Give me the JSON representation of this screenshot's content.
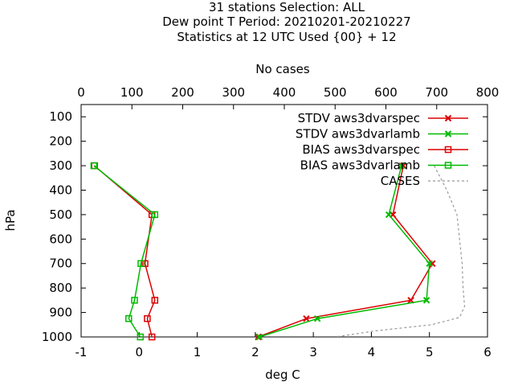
{
  "chart_data": {
    "type": "line",
    "title": [
      "31 stations Selection: ALL",
      "Dew point T  Period: 20210201-20210227",
      "Statistics at 12 UTC  Used {00} + 12"
    ],
    "xlabel": "deg C",
    "x2label": "No cases",
    "ylabel": "hPa",
    "xlim": [
      -1,
      6
    ],
    "x2lim": [
      0,
      800
    ],
    "ylim": [
      1000,
      50
    ],
    "x_ticks": [
      -1,
      0,
      1,
      2,
      3,
      4,
      5,
      6
    ],
    "x2_ticks": [
      0,
      100,
      200,
      300,
      400,
      500,
      600,
      700,
      800
    ],
    "y_ticks": [
      100,
      200,
      300,
      400,
      500,
      600,
      700,
      800,
      900,
      1000
    ],
    "grid": false,
    "legend_position": "top-right",
    "series": [
      {
        "name": "STDV aws3dvarspec",
        "color": "#dd0000",
        "marker": "x",
        "axis": "x",
        "points": [
          [
            4.55,
            300
          ],
          [
            4.37,
            500
          ],
          [
            5.05,
            700
          ],
          [
            4.68,
            850
          ],
          [
            2.88,
            925
          ],
          [
            2.05,
            1000
          ]
        ]
      },
      {
        "name": "STDV aws3dvarlamb",
        "color": "#00bb00",
        "marker": "x",
        "axis": "x",
        "points": [
          [
            4.52,
            300
          ],
          [
            4.3,
            500
          ],
          [
            5.0,
            700
          ],
          [
            4.95,
            850
          ],
          [
            3.07,
            925
          ],
          [
            2.07,
            1000
          ]
        ]
      },
      {
        "name": "BIAS aws3dvarspec",
        "color": "#dd0000",
        "marker": "square",
        "axis": "x",
        "points": [
          [
            -0.77,
            300
          ],
          [
            0.22,
            500
          ],
          [
            0.1,
            700
          ],
          [
            0.27,
            850
          ],
          [
            0.14,
            925
          ],
          [
            0.22,
            1000
          ]
        ]
      },
      {
        "name": "BIAS aws3dvarlamb",
        "color": "#00bb00",
        "marker": "square",
        "axis": "x",
        "points": [
          [
            -0.78,
            300
          ],
          [
            0.27,
            500
          ],
          [
            0.03,
            700
          ],
          [
            -0.08,
            850
          ],
          [
            -0.18,
            925
          ],
          [
            0.02,
            1000
          ]
        ]
      },
      {
        "name": "CASES",
        "color": "#999999",
        "marker": "none",
        "dash": true,
        "axis": "x2",
        "points": [
          [
            695,
            300
          ],
          [
            720,
            400
          ],
          [
            740,
            500
          ],
          [
            745,
            600
          ],
          [
            750,
            700
          ],
          [
            752,
            800
          ],
          [
            755,
            875
          ],
          [
            745,
            920
          ],
          [
            690,
            950
          ],
          [
            580,
            975
          ],
          [
            500,
            1000
          ]
        ]
      }
    ]
  }
}
